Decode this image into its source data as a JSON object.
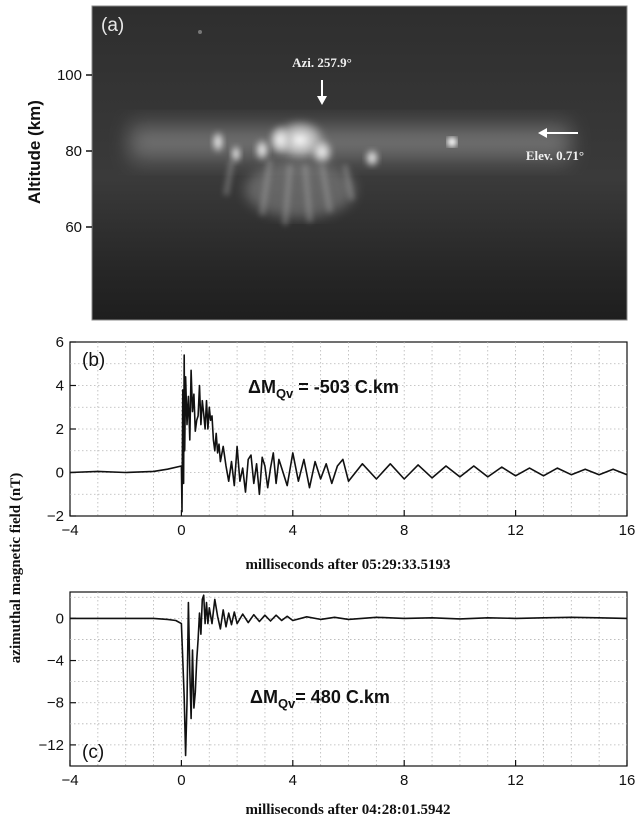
{
  "panel_a": {
    "tag": "(a)",
    "ylabel": "Altitude (km)",
    "yticks": [
      "100",
      "80",
      "60"
    ],
    "azimuth_label": "Azi. 257.9°",
    "elevation_label": "Elev. 0.71°"
  },
  "shared": {
    "ylabel": "azimuthal magnetic field (nT)"
  },
  "chart_data": [
    {
      "type": "line",
      "panel": "(b)",
      "xlabel": "milliseconds after 05:29:33.5193",
      "ylabel": "azimuthal magnetic field (nT)",
      "annotation": {
        "symbol": "ΔM",
        "subscript": "Qv",
        "text": " = -503 C.km"
      },
      "xlim": [
        -4,
        16
      ],
      "ylim": [
        -2,
        6
      ],
      "xticks": [
        -4,
        0,
        4,
        8,
        12,
        16
      ],
      "yticks": [
        -2,
        0,
        2,
        4,
        6
      ],
      "grid": true,
      "series": [
        {
          "x": [
            -4,
            -3,
            -2,
            -1,
            -0.5,
            0,
            0.02,
            0.05,
            0.08,
            0.1,
            0.12,
            0.15,
            0.2,
            0.25,
            0.3,
            0.35,
            0.4,
            0.45,
            0.5,
            0.55,
            0.6,
            0.65,
            0.7,
            0.75,
            0.8,
            0.85,
            0.9,
            0.95,
            1.0,
            1.05,
            1.1,
            1.15,
            1.2,
            1.25,
            1.3,
            1.35,
            1.4,
            1.5,
            1.6,
            1.7,
            1.8,
            1.9,
            2.0,
            2.1,
            2.2,
            2.3,
            2.4,
            2.5,
            2.6,
            2.7,
            2.8,
            2.9,
            3.0,
            3.1,
            3.2,
            3.3,
            3.4,
            3.5,
            3.6,
            3.8,
            4.0,
            4.2,
            4.4,
            4.6,
            4.8,
            5.0,
            5.2,
            5.4,
            5.6,
            5.8,
            6.0,
            6.5,
            7.0,
            7.5,
            8.0,
            8.5,
            9.0,
            9.5,
            10.0,
            10.5,
            11.0,
            11.5,
            12.0,
            12.5,
            13.0,
            13.5,
            14.0,
            14.5,
            15.0,
            15.5,
            16.0
          ],
          "y": [
            0.0,
            0.05,
            0.0,
            0.05,
            0.15,
            0.3,
            -1.8,
            3.8,
            -0.5,
            5.4,
            1.0,
            4.4,
            2.2,
            3.5,
            1.5,
            4.7,
            2.8,
            3.6,
            1.9,
            2.4,
            2.6,
            4.0,
            2.2,
            3.3,
            2.7,
            2.0,
            3.3,
            2.0,
            3.0,
            2.4,
            2.6,
            1.5,
            1.0,
            1.8,
            0.9,
            1.3,
            0.5,
            1.2,
            0.3,
            -0.4,
            0.5,
            -0.6,
            1.2,
            -0.4,
            0.2,
            -0.9,
            0.6,
            0.8,
            -0.5,
            0.4,
            -1.0,
            0.7,
            0.3,
            -0.7,
            0.2,
            0.9,
            -0.5,
            0.6,
            0.2,
            -0.6,
            0.9,
            -0.4,
            0.6,
            -0.7,
            0.5,
            -0.3,
            0.4,
            -0.5,
            0.3,
            0.6,
            -0.4,
            0.4,
            -0.3,
            0.4,
            -0.3,
            0.35,
            -0.25,
            0.3,
            -0.2,
            0.3,
            -0.2,
            0.25,
            -0.15,
            0.2,
            -0.15,
            0.2,
            -0.1,
            0.15,
            -0.1,
            0.15,
            -0.1
          ]
        }
      ]
    },
    {
      "type": "line",
      "panel": "(c)",
      "xlabel": "milliseconds after 04:28:01.5942",
      "ylabel": "azimuthal magnetic field (nT)",
      "annotation": {
        "symbol": "ΔM",
        "subscript": "Qv",
        "text": "= 480 C.km"
      },
      "xlim": [
        -4,
        16
      ],
      "ylim": [
        -14,
        2.5
      ],
      "xticks": [
        -4,
        0,
        4,
        8,
        12,
        16
      ],
      "yticks": [
        -12,
        -8,
        -4,
        0
      ],
      "grid": true,
      "series": [
        {
          "x": [
            -4,
            -3,
            -2,
            -1,
            -0.5,
            -0.2,
            0,
            0.05,
            0.1,
            0.15,
            0.2,
            0.25,
            0.3,
            0.35,
            0.4,
            0.45,
            0.5,
            0.55,
            0.6,
            0.65,
            0.7,
            0.75,
            0.8,
            0.85,
            0.9,
            0.95,
            1.0,
            1.1,
            1.2,
            1.3,
            1.4,
            1.5,
            1.6,
            1.7,
            1.8,
            1.9,
            2.0,
            2.2,
            2.4,
            2.6,
            2.8,
            3.0,
            3.2,
            3.4,
            3.6,
            3.8,
            4.0,
            4.5,
            5.0,
            5.5,
            6.0,
            7.0,
            8.0,
            9.0,
            10.0,
            11.0,
            12.0,
            13.0,
            14.0,
            15.0,
            16.0
          ],
          "y": [
            0.0,
            0.0,
            0.0,
            0.0,
            -0.1,
            -0.2,
            -0.5,
            -4.0,
            -7.5,
            -13.0,
            -8.0,
            1.5,
            -5.0,
            -9.5,
            -3.0,
            -8.5,
            -7.0,
            -4.0,
            -2.0,
            0.5,
            -1.5,
            1.8,
            2.2,
            -0.5,
            1.5,
            -0.5,
            1.0,
            -0.5,
            1.8,
            0.2,
            -1.0,
            0.8,
            -0.8,
            0.5,
            -0.6,
            0.6,
            -0.5,
            0.4,
            -0.4,
            0.35,
            -0.3,
            0.3,
            -0.25,
            0.3,
            -0.2,
            0.2,
            -0.2,
            0.15,
            -0.1,
            0.1,
            -0.1,
            0.1,
            0.0,
            0.05,
            -0.05,
            0.05,
            0.0,
            0.05,
            0.1,
            0.05,
            0.0
          ]
        }
      ]
    }
  ]
}
